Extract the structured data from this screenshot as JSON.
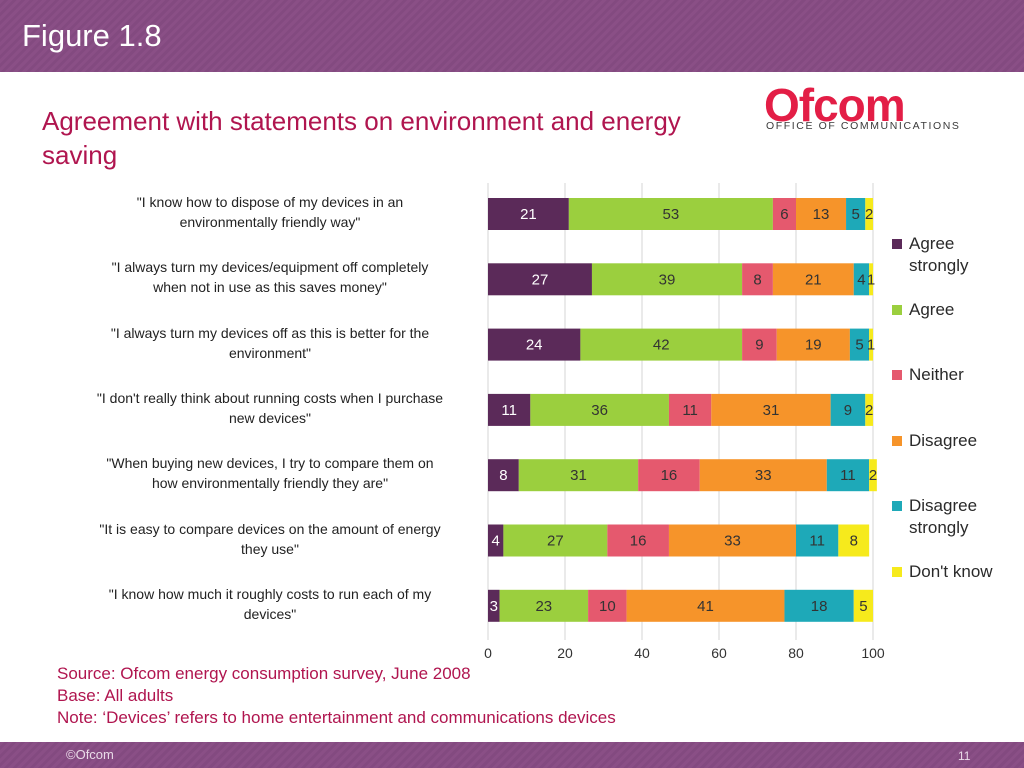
{
  "header": {
    "figure_label": "Figure 1.8"
  },
  "title": "Agreement with statements on environment and energy saving",
  "logo": {
    "word": "Ofcom",
    "subtitle": "OFFICE OF COMMUNICATIONS"
  },
  "colors": {
    "agree_strongly": "#5b2a59",
    "agree": "#9bcf3e",
    "neither": "#e5596e",
    "disagree": "#f6942a",
    "disagree_strongly": "#1ea9b8",
    "dont_know": "#f6ea1c"
  },
  "chart_data": {
    "type": "bar",
    "orientation": "horizontal",
    "stacked": true,
    "title": "Agreement with statements on environment and energy saving",
    "xlabel": "",
    "ylabel": "",
    "xlim": [
      0,
      100
    ],
    "x_ticks": [
      "0",
      "20",
      "40",
      "60",
      "80",
      "100"
    ],
    "grid": true,
    "legend_position": "right",
    "categories": [
      "\"I know how to dispose of my devices in an environmentally friendly way\"",
      "\"I always turn my devices/equipment off completely when not in use as this saves money\"",
      "\"I always turn my devices off as this is better for the environment\"",
      "\"I don't really think about running costs when I purchase new devices\"",
      "\"When buying new devices, I try to compare them on how environmentally friendly they are\"",
      "\"It is easy to compare devices on the amount of energy they use\"",
      "\"I know how much it roughly costs to run each of my devices\""
    ],
    "category_lines": [
      [
        "\"I know how to dispose of my devices in an",
        "environmentally friendly way\""
      ],
      [
        "\"I always turn my devices/equipment off completely",
        "when not in use as this saves money\""
      ],
      [
        "\"I always turn my devices off as this is better for the",
        "environment\""
      ],
      [
        "\"I don't really think about running costs when I purchase",
        "new devices\""
      ],
      [
        "\"When buying new devices, I try to compare them on",
        "how environmentally friendly they are\""
      ],
      [
        "\"It is easy to compare devices on the amount of energy",
        "they use\""
      ],
      [
        "\"I know how much it roughly costs to run each of my",
        "devices\""
      ]
    ],
    "series": [
      {
        "name": "Agree strongly",
        "legend_lines": [
          "Agree",
          "strongly"
        ],
        "values": [
          21,
          27,
          24,
          11,
          8,
          4,
          3
        ]
      },
      {
        "name": "Agree",
        "legend_lines": [
          "Agree"
        ],
        "values": [
          53,
          39,
          42,
          36,
          31,
          27,
          23
        ]
      },
      {
        "name": "Neither",
        "legend_lines": [
          "Neither"
        ],
        "values": [
          6,
          8,
          9,
          11,
          16,
          16,
          10
        ]
      },
      {
        "name": "Disagree",
        "legend_lines": [
          "Disagree"
        ],
        "values": [
          13,
          21,
          19,
          31,
          33,
          33,
          41
        ]
      },
      {
        "name": "Disagree strongly",
        "legend_lines": [
          "Disagree",
          "strongly"
        ],
        "values": [
          5,
          4,
          5,
          9,
          11,
          11,
          18
        ]
      },
      {
        "name": "Don't know",
        "legend_lines": [
          "Don't know"
        ],
        "values": [
          2,
          1,
          1,
          2,
          2,
          8,
          5
        ]
      }
    ]
  },
  "notes": {
    "source": "Source: Ofcom energy consumption survey, June 2008",
    "base": "Base: All adults",
    "note": "Note: ‘Devices’ refers to home entertainment and communications devices"
  },
  "footer": {
    "copyright": "©Ofcom",
    "page": "11"
  }
}
